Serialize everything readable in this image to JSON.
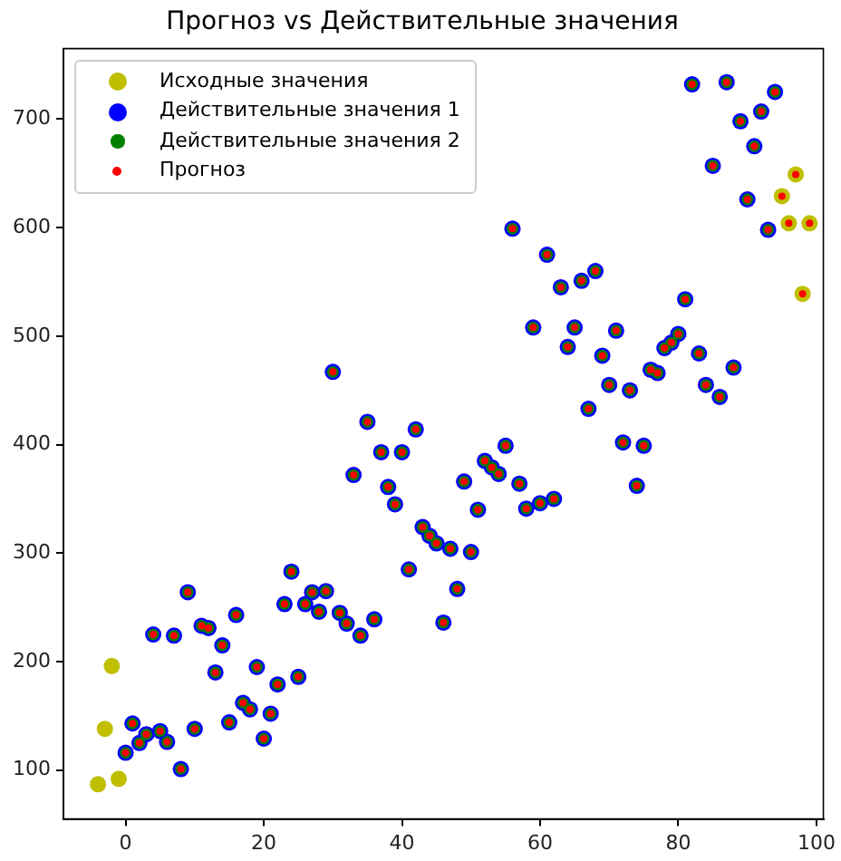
{
  "chart_data": {
    "type": "scatter",
    "title": "Прогноз vs Действительные значения",
    "xlim": [
      -9,
      101
    ],
    "ylim": [
      55,
      765
    ],
    "xticks": [
      0,
      20,
      40,
      60,
      80,
      100
    ],
    "yticks": [
      100,
      200,
      300,
      400,
      500,
      600,
      700
    ],
    "legend": "top left",
    "marker": "circle",
    "series": [
      {
        "name": "Исходные значения",
        "color": "#bfbf00",
        "x": [
          -4,
          -3,
          -2,
          -1,
          95,
          96,
          97,
          98,
          99
        ],
        "values": [
          87,
          138,
          196,
          92,
          629,
          604,
          649,
          539,
          604
        ]
      },
      {
        "name": "Действительные значения 1",
        "color": "#0000ff",
        "x": [
          0,
          1,
          2,
          3,
          4,
          5,
          6,
          7,
          8,
          9,
          10,
          11,
          12,
          13,
          14,
          15,
          16,
          17,
          18,
          19,
          20,
          21,
          22,
          23,
          24,
          25,
          26,
          27,
          28,
          29,
          30,
          31,
          32,
          33,
          34,
          35,
          36,
          37,
          38,
          39,
          40,
          41,
          42,
          43,
          44,
          45,
          46,
          47,
          48,
          49,
          50,
          51,
          52,
          53,
          54,
          55,
          56,
          57,
          58,
          59,
          60,
          61,
          62,
          63,
          64,
          65,
          66,
          67,
          68,
          69,
          70,
          71,
          72,
          73,
          74,
          75,
          76,
          77,
          78,
          79,
          80,
          81,
          82,
          83,
          84,
          85,
          86,
          87,
          88,
          89,
          90,
          91,
          92,
          93,
          94
        ],
        "values": [
          116,
          143,
          125,
          133,
          225,
          136,
          126,
          224,
          101,
          264,
          138,
          233,
          231,
          190,
          215,
          144,
          243,
          162,
          156,
          195,
          129,
          152,
          179,
          253,
          283,
          186,
          253,
          264,
          246,
          265,
          467,
          245,
          235,
          372,
          224,
          421,
          239,
          393,
          361,
          345,
          393,
          285,
          414,
          324,
          316,
          309,
          236,
          304,
          267,
          366,
          301,
          340,
          385,
          379,
          373,
          399,
          599,
          364,
          341,
          508,
          346,
          575,
          350,
          545,
          490,
          508,
          551,
          433,
          560,
          482,
          455,
          505,
          402,
          450,
          362,
          399,
          469,
          466,
          489,
          494,
          502,
          534,
          732,
          484,
          455,
          657,
          444,
          734,
          471,
          698,
          626,
          675,
          707,
          598,
          725
        ]
      },
      {
        "name": "Действительные значения 2",
        "color": "#008000",
        "x": [
          0,
          1,
          2,
          3,
          4,
          5,
          6,
          7,
          8,
          9,
          10,
          11,
          12,
          13,
          14,
          15,
          16,
          17,
          18,
          19,
          20,
          21,
          22,
          23,
          24,
          25,
          26,
          27,
          28,
          29,
          30,
          31,
          32,
          33,
          34,
          35,
          36,
          37,
          38,
          39,
          40,
          41,
          42,
          43,
          44,
          45,
          46,
          47,
          48,
          49,
          50,
          51,
          52,
          53,
          54,
          55,
          56,
          57,
          58,
          59,
          60,
          61,
          62,
          63,
          64,
          65,
          66,
          67,
          68,
          69,
          70,
          71,
          72,
          73,
          74,
          75,
          76,
          77,
          78,
          79,
          80,
          81,
          82,
          83,
          84,
          85,
          86,
          87,
          88,
          89,
          90,
          91,
          92,
          93,
          94
        ],
        "values": [
          116,
          143,
          125,
          133,
          225,
          136,
          126,
          224,
          101,
          264,
          138,
          233,
          231,
          190,
          215,
          144,
          243,
          162,
          156,
          195,
          129,
          152,
          179,
          253,
          283,
          186,
          253,
          264,
          246,
          265,
          467,
          245,
          235,
          372,
          224,
          421,
          239,
          393,
          361,
          345,
          393,
          285,
          414,
          324,
          316,
          309,
          236,
          304,
          267,
          366,
          301,
          340,
          385,
          379,
          373,
          399,
          599,
          364,
          341,
          508,
          346,
          575,
          350,
          545,
          490,
          508,
          551,
          433,
          560,
          482,
          455,
          505,
          402,
          450,
          362,
          399,
          469,
          466,
          489,
          494,
          502,
          534,
          732,
          484,
          455,
          657,
          444,
          734,
          471,
          698,
          626,
          675,
          707,
          598,
          725
        ]
      },
      {
        "name": "Прогноз",
        "color": "#ff0000",
        "x": [
          0,
          1,
          2,
          3,
          4,
          5,
          6,
          7,
          8,
          9,
          10,
          11,
          12,
          13,
          14,
          15,
          16,
          17,
          18,
          19,
          20,
          21,
          22,
          23,
          24,
          25,
          26,
          27,
          28,
          29,
          30,
          31,
          32,
          33,
          34,
          35,
          36,
          37,
          38,
          39,
          40,
          41,
          42,
          43,
          44,
          45,
          46,
          47,
          48,
          49,
          50,
          51,
          52,
          53,
          54,
          55,
          56,
          57,
          58,
          59,
          60,
          61,
          62,
          63,
          64,
          65,
          66,
          67,
          68,
          69,
          70,
          71,
          72,
          73,
          74,
          75,
          76,
          77,
          78,
          79,
          80,
          81,
          82,
          83,
          84,
          85,
          86,
          87,
          88,
          89,
          90,
          91,
          92,
          93,
          94,
          95,
          96,
          97,
          98,
          99
        ],
        "values": [
          116,
          143,
          125,
          133,
          225,
          136,
          126,
          224,
          101,
          264,
          138,
          233,
          231,
          190,
          215,
          144,
          243,
          162,
          156,
          195,
          129,
          152,
          179,
          253,
          283,
          186,
          253,
          264,
          246,
          265,
          467,
          245,
          235,
          372,
          224,
          421,
          239,
          393,
          361,
          345,
          393,
          285,
          414,
          324,
          316,
          309,
          236,
          304,
          267,
          366,
          301,
          340,
          385,
          379,
          373,
          399,
          599,
          364,
          341,
          508,
          346,
          575,
          350,
          545,
          490,
          508,
          551,
          433,
          560,
          482,
          455,
          505,
          402,
          450,
          362,
          399,
          469,
          466,
          489,
          494,
          502,
          534,
          732,
          484,
          455,
          657,
          444,
          734,
          471,
          698,
          626,
          675,
          707,
          598,
          725,
          629,
          604,
          649,
          539,
          604
        ]
      }
    ]
  }
}
